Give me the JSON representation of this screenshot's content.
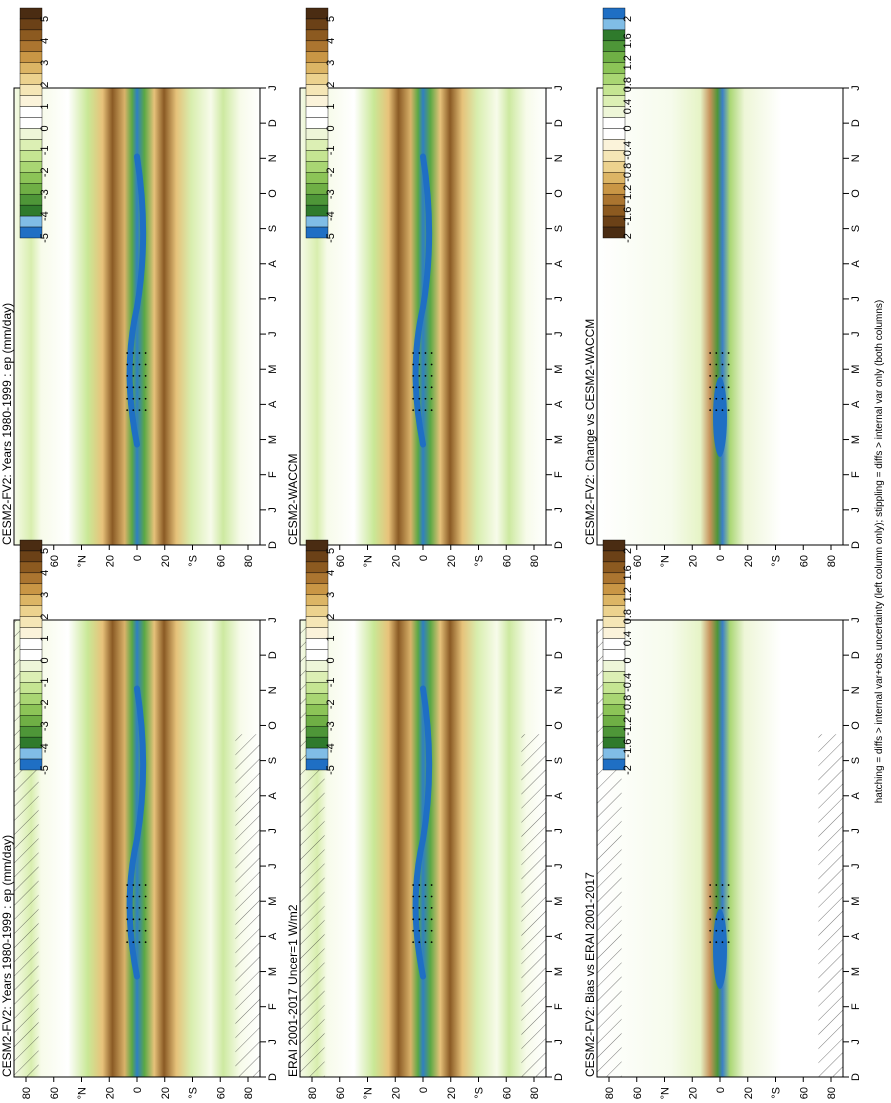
{
  "footer": {
    "text": "hatching = diffs > internal var+obs uncertainty (left column only); stippling = diffs > internal var only (both columns)"
  },
  "colorbars": {
    "field": {
      "labels": [
        "5",
        "4",
        "3",
        "2",
        "1",
        "0",
        "-1",
        "-2",
        "-3",
        "-4",
        "-5"
      ],
      "colors": [
        "#4a2c12",
        "#6b4117",
        "#8c5a20",
        "#ab7530",
        "#c99645",
        "#dcb565",
        "#ecd28e",
        "#f5e6b6",
        "#fbf3da",
        "#ffffff",
        "#ffffff",
        "#eef6d8",
        "#dcefb4",
        "#c5e592",
        "#a9d673",
        "#8cc457",
        "#6faf45",
        "#4e9638",
        "#2f7a2c",
        "#80bde6",
        "#1f6fc4"
      ]
    },
    "diff_bias": {
      "labels": [
        "2",
        "1.6",
        "1.2",
        "0.8",
        "0.4",
        "0",
        "-0.4",
        "-0.8",
        "-1.2",
        "-1.6",
        "-2"
      ],
      "colors": [
        "#4a2c12",
        "#6b4117",
        "#8c5a20",
        "#ab7530",
        "#c99645",
        "#dcb565",
        "#ecd28e",
        "#f5e6b6",
        "#fbf3da",
        "#ffffff",
        "#ffffff",
        "#eef6d8",
        "#dcefb4",
        "#c5e592",
        "#a9d673",
        "#8cc457",
        "#6faf45",
        "#4e9638",
        "#2f7a2c",
        "#80bde6",
        "#1f6fc4"
      ]
    },
    "diff_change": {
      "labels": [
        "2",
        "1.6",
        "1.2",
        "0.8",
        "0.4",
        "0",
        "-0.4",
        "-0.8",
        "-1.2",
        "-1.6",
        "-2"
      ],
      "colors": [
        "#1f6fc4",
        "#80bde6",
        "#2f7a2c",
        "#4e9638",
        "#6faf45",
        "#8cc457",
        "#a9d673",
        "#c5e592",
        "#dcefb4",
        "#eef6d8",
        "#ffffff",
        "#ffffff",
        "#fbf3da",
        "#f5e6b6",
        "#ecd28e",
        "#dcb565",
        "#c99645",
        "#ab7530",
        "#8c5a20",
        "#6b4117",
        "#4a2c12"
      ]
    }
  },
  "chart_data": [
    {
      "type": "heatmap",
      "title": "CESM2-FV2: Years 1980-1999 : ep (mm/day)",
      "x_ticks": [
        "D",
        "J",
        "F",
        "M",
        "A",
        "M",
        "J",
        "J",
        "A",
        "S",
        "O",
        "N",
        "D",
        "J"
      ],
      "y_ticks": [
        "80",
        "60",
        "°N",
        "20",
        "0",
        "20",
        "°S",
        "60",
        "80"
      ],
      "ylim": [
        -90,
        90
      ],
      "hatched": true,
      "stippled": true
    },
    {
      "type": "heatmap",
      "title": "CESM2-FV2: Years 1980-1999 : ep (mm/day)",
      "x_ticks": [
        "D",
        "J",
        "F",
        "M",
        "A",
        "M",
        "J",
        "J",
        "A",
        "S",
        "O",
        "N",
        "D",
        "J"
      ],
      "y_ticks": [
        "80",
        "60",
        "°N",
        "20",
        "0",
        "20",
        "°S",
        "60",
        "80"
      ],
      "ylim": [
        -90,
        90
      ],
      "hatched": false,
      "stippled": true
    },
    {
      "type": "heatmap",
      "title": "ERAI 2001-2017 Uncer=1 W/m2",
      "x_ticks": [
        "D",
        "J",
        "F",
        "M",
        "A",
        "M",
        "J",
        "J",
        "A",
        "S",
        "O",
        "N",
        "D",
        "J"
      ],
      "y_ticks": [
        "80",
        "60",
        "°N",
        "20",
        "0",
        "20",
        "°S",
        "60",
        "80"
      ],
      "ylim": [
        -90,
        90
      ],
      "hatched": true,
      "stippled": true
    },
    {
      "type": "heatmap",
      "title": "CESM2-WACCM",
      "x_ticks": [
        "D",
        "J",
        "F",
        "M",
        "A",
        "M",
        "J",
        "J",
        "A",
        "S",
        "O",
        "N",
        "D",
        "J"
      ],
      "y_ticks": [
        "80",
        "60",
        "°N",
        "20",
        "0",
        "20",
        "°S",
        "60",
        "80"
      ],
      "ylim": [
        -90,
        90
      ],
      "hatched": false,
      "stippled": true
    },
    {
      "type": "heatmap",
      "title": "CESM2-FV2: Bias vs ERAI 2001-2017",
      "x_ticks": [
        "D",
        "J",
        "F",
        "M",
        "A",
        "M",
        "J",
        "J",
        "A",
        "S",
        "O",
        "N",
        "D",
        "J"
      ],
      "y_ticks": [
        "80",
        "60",
        "°N",
        "20",
        "0",
        "20",
        "°S",
        "60",
        "80"
      ],
      "ylim": [
        -90,
        90
      ],
      "hatched": true,
      "stippled": true
    },
    {
      "type": "heatmap",
      "title": "CESM2-FV2: Change vs CESM2-WACCM",
      "x_ticks": [
        "D",
        "J",
        "F",
        "M",
        "A",
        "M",
        "J",
        "J",
        "A",
        "S",
        "O",
        "N",
        "D",
        "J"
      ],
      "y_ticks": [
        "80",
        "60",
        "°N",
        "20",
        "0",
        "20",
        "°S",
        "60",
        "80"
      ],
      "ylim": [
        -90,
        90
      ],
      "hatched": false,
      "stippled": true
    }
  ]
}
